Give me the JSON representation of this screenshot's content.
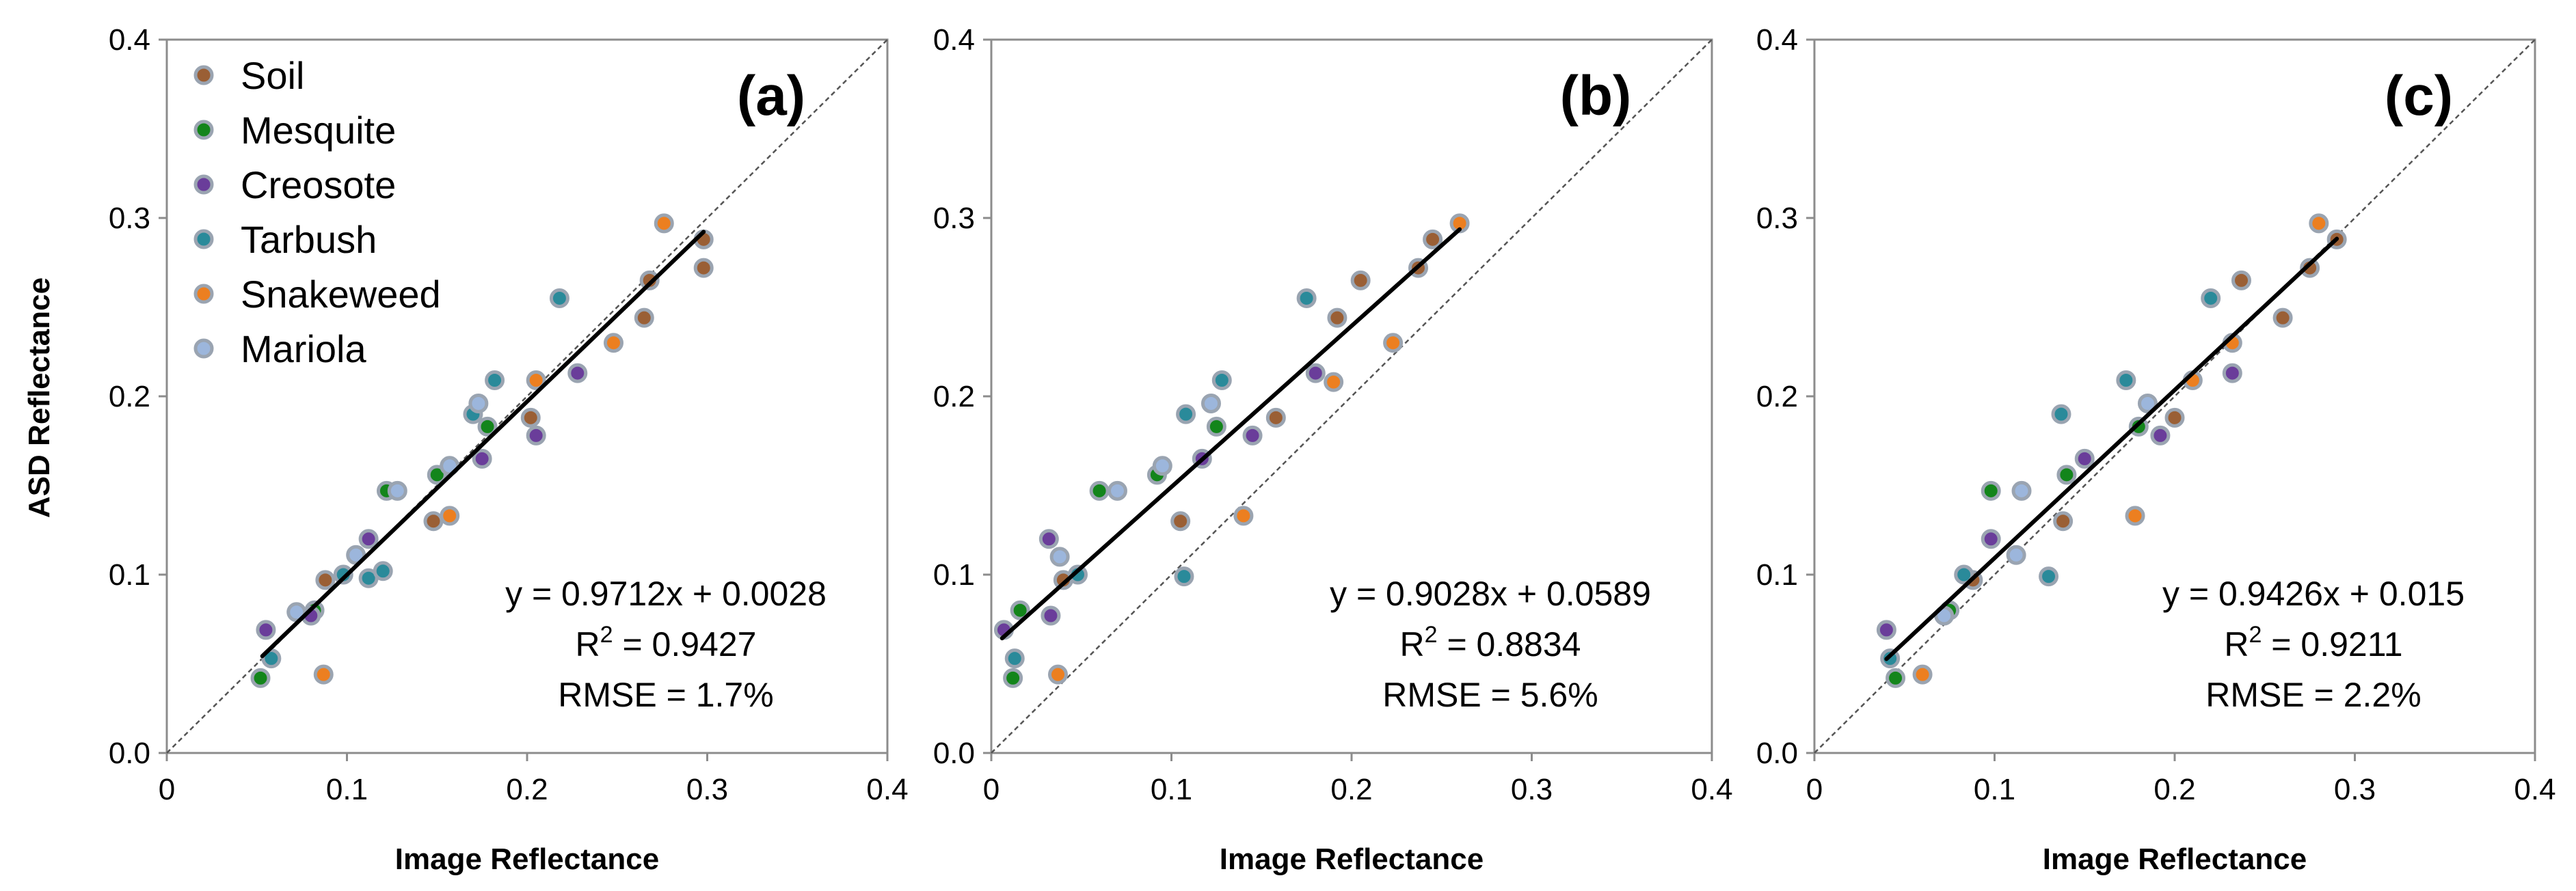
{
  "chart_data": {
    "type": "scatter",
    "ylabel": "ASD Reflectance",
    "legend": {
      "position": "top-left",
      "entries": [
        {
          "name": "Soil",
          "color": "#9a5f35"
        },
        {
          "name": "Mesquite",
          "color": "#13851b"
        },
        {
          "name": "Creosote",
          "color": "#6a3d9a"
        },
        {
          "name": "Tarbush",
          "color": "#2a8a9a"
        },
        {
          "name": "Snakeweed",
          "color": "#ec7f20"
        },
        {
          "name": "Mariola",
          "color": "#9cb6dc"
        }
      ]
    },
    "marker_edge_color": "#9aa4b1",
    "panels": [
      {
        "id": "a",
        "label": "(a)",
        "xlabel": "Image Reflectance",
        "xlim": [
          0,
          0.4
        ],
        "ylim": [
          0,
          0.4
        ],
        "xticks": [
          "0",
          "0.1",
          "0.2",
          "0.3",
          "0.4"
        ],
        "yticks": [
          "0.0",
          "0.1",
          "0.2",
          "0.3",
          "0.4"
        ],
        "equation": "y = 0.9712x + 0.0028",
        "r2_prefix": "R",
        "r2_sup": "2",
        "r2_value": " = 0.9427",
        "rmse": "RMSE = 1.7%",
        "fit": {
          "slope": 0.9712,
          "intercept": 0.0028,
          "x_range": [
            0.053,
            0.298
          ]
        },
        "one_to_one": true,
        "series": [
          {
            "name": "Soil",
            "points": [
              [
                0.298,
                0.288
              ],
              [
                0.298,
                0.272
              ],
              [
                0.268,
                0.265
              ],
              [
                0.265,
                0.244
              ],
              [
                0.202,
                0.188
              ],
              [
                0.148,
                0.13
              ],
              [
                0.088,
                0.097
              ]
            ]
          },
          {
            "name": "Mesquite",
            "points": [
              [
                0.052,
                0.042
              ],
              [
                0.082,
                0.08
              ],
              [
                0.122,
                0.147
              ],
              [
                0.15,
                0.156
              ],
              [
                0.178,
                0.183
              ]
            ]
          },
          {
            "name": "Creosote",
            "points": [
              [
                0.055,
                0.069
              ],
              [
                0.08,
                0.077
              ],
              [
                0.112,
                0.12
              ],
              [
                0.175,
                0.165
              ],
              [
                0.205,
                0.178
              ],
              [
                0.228,
                0.213
              ]
            ]
          },
          {
            "name": "Tarbush",
            "points": [
              [
                0.058,
                0.053
              ],
              [
                0.098,
                0.1
              ],
              [
                0.112,
                0.098
              ],
              [
                0.12,
                0.102
              ],
              [
                0.17,
                0.19
              ],
              [
                0.182,
                0.209
              ],
              [
                0.218,
                0.255
              ]
            ]
          },
          {
            "name": "Snakeweed",
            "points": [
              [
                0.087,
                0.044
              ],
              [
                0.157,
                0.133
              ],
              [
                0.205,
                0.209
              ],
              [
                0.248,
                0.23
              ],
              [
                0.276,
                0.297
              ]
            ]
          },
          {
            "name": "Mariola",
            "points": [
              [
                0.072,
                0.079
              ],
              [
                0.105,
                0.111
              ],
              [
                0.128,
                0.147
              ],
              [
                0.157,
                0.161
              ],
              [
                0.173,
                0.196
              ]
            ]
          }
        ]
      },
      {
        "id": "b",
        "label": "(b)",
        "xlabel": "Image Reflectance",
        "xlim": [
          0,
          0.4
        ],
        "ylim": [
          0,
          0.4
        ],
        "xticks": [
          "0",
          "0.1",
          "0.2",
          "0.3",
          "0.4"
        ],
        "yticks": [
          "0.0",
          "0.1",
          "0.2",
          "0.3",
          "0.4"
        ],
        "equation": "y = 0.9028x + 0.0589",
        "r2_prefix": "R",
        "r2_sup": "2",
        "r2_value": " = 0.8834",
        "rmse": "RMSE = 5.6%",
        "fit": {
          "slope": 0.9028,
          "intercept": 0.0589,
          "x_range": [
            0.006,
            0.26
          ]
        },
        "one_to_one": true,
        "series": [
          {
            "name": "Soil",
            "points": [
              [
                0.245,
                0.288
              ],
              [
                0.237,
                0.272
              ],
              [
                0.205,
                0.265
              ],
              [
                0.192,
                0.244
              ],
              [
                0.158,
                0.188
              ],
              [
                0.105,
                0.13
              ],
              [
                0.04,
                0.097
              ]
            ]
          },
          {
            "name": "Mesquite",
            "points": [
              [
                0.012,
                0.042
              ],
              [
                0.016,
                0.08
              ],
              [
                0.06,
                0.147
              ],
              [
                0.092,
                0.156
              ],
              [
                0.125,
                0.183
              ]
            ]
          },
          {
            "name": "Creosote",
            "points": [
              [
                0.007,
                0.069
              ],
              [
                0.033,
                0.077
              ],
              [
                0.032,
                0.12
              ],
              [
                0.117,
                0.165
              ],
              [
                0.145,
                0.178
              ],
              [
                0.18,
                0.213
              ]
            ]
          },
          {
            "name": "Tarbush",
            "points": [
              [
                0.013,
                0.053
              ],
              [
                0.048,
                0.1
              ],
              [
                0.107,
                0.099
              ],
              [
                0.108,
                0.19
              ],
              [
                0.128,
                0.209
              ],
              [
                0.175,
                0.255
              ]
            ]
          },
          {
            "name": "Snakeweed",
            "points": [
              [
                0.037,
                0.044
              ],
              [
                0.14,
                0.133
              ],
              [
                0.19,
                0.208
              ],
              [
                0.223,
                0.23
              ],
              [
                0.26,
                0.297
              ]
            ]
          },
          {
            "name": "Mariola",
            "points": [
              [
                0.038,
                0.11
              ],
              [
                0.07,
                0.147
              ],
              [
                0.095,
                0.161
              ],
              [
                0.122,
                0.196
              ]
            ]
          }
        ]
      },
      {
        "id": "c",
        "label": "(c)",
        "xlabel": "Image Reflectance",
        "xlim": [
          0,
          0.4
        ],
        "ylim": [
          0,
          0.4
        ],
        "xticks": [
          "0",
          "0.1",
          "0.2",
          "0.3",
          "0.4"
        ],
        "yticks": [
          "0.0",
          "0.1",
          "0.2",
          "0.3",
          "0.4"
        ],
        "equation": "y = 0.9426x + 0.015",
        "r2_prefix": "R",
        "r2_sup": "2",
        "r2_value": " = 0.9211",
        "rmse": "RMSE = 2.2%",
        "fit": {
          "slope": 0.9426,
          "intercept": 0.015,
          "x_range": [
            0.04,
            0.29
          ]
        },
        "one_to_one": true,
        "series": [
          {
            "name": "Soil",
            "points": [
              [
                0.29,
                0.288
              ],
              [
                0.275,
                0.272
              ],
              [
                0.237,
                0.265
              ],
              [
                0.26,
                0.244
              ],
              [
                0.2,
                0.188
              ],
              [
                0.138,
                0.13
              ],
              [
                0.088,
                0.097
              ]
            ]
          },
          {
            "name": "Mesquite",
            "points": [
              [
                0.045,
                0.042
              ],
              [
                0.075,
                0.08
              ],
              [
                0.098,
                0.147
              ],
              [
                0.14,
                0.156
              ],
              [
                0.18,
                0.183
              ]
            ]
          },
          {
            "name": "Creosote",
            "points": [
              [
                0.04,
                0.069
              ],
              [
                0.098,
                0.12
              ],
              [
                0.15,
                0.165
              ],
              [
                0.192,
                0.178
              ],
              [
                0.232,
                0.213
              ]
            ]
          },
          {
            "name": "Tarbush",
            "points": [
              [
                0.042,
                0.053
              ],
              [
                0.083,
                0.1
              ],
              [
                0.13,
                0.099
              ],
              [
                0.137,
                0.19
              ],
              [
                0.173,
                0.209
              ],
              [
                0.22,
                0.255
              ]
            ]
          },
          {
            "name": "Snakeweed",
            "points": [
              [
                0.06,
                0.044
              ],
              [
                0.178,
                0.133
              ],
              [
                0.21,
                0.209
              ],
              [
                0.232,
                0.23
              ],
              [
                0.28,
                0.297
              ]
            ]
          },
          {
            "name": "Mariola",
            "points": [
              [
                0.072,
                0.077
              ],
              [
                0.112,
                0.111
              ],
              [
                0.115,
                0.147
              ],
              [
                0.185,
                0.196
              ]
            ]
          }
        ]
      }
    ]
  }
}
